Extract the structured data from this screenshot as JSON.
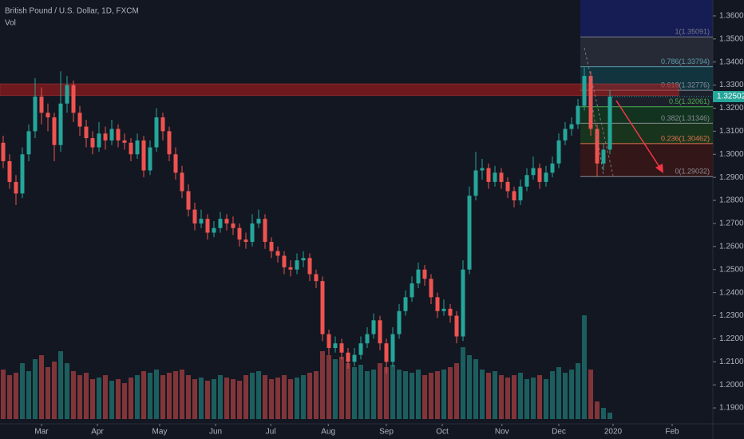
{
  "chart_data": {
    "type": "candlestick",
    "title": "British Pound / U.S. Dollar, 1D, FXCM",
    "volume_label": "Vol",
    "up_color": "#26a69a",
    "down_color": "#ef5350",
    "candles": [
      [
        1.305,
        1.308,
        1.294,
        1.297
      ],
      [
        1.297,
        1.3,
        1.285,
        1.288
      ],
      [
        1.288,
        1.291,
        1.278,
        1.283
      ],
      [
        1.283,
        1.303,
        1.281,
        1.3
      ],
      [
        1.3,
        1.313,
        1.297,
        1.31
      ],
      [
        1.31,
        1.333,
        1.307,
        1.325
      ],
      [
        1.325,
        1.329,
        1.313,
        1.318
      ],
      [
        1.318,
        1.322,
        1.31,
        1.316
      ],
      [
        1.316,
        1.318,
        1.297,
        1.304
      ],
      [
        1.304,
        1.336,
        1.301,
        1.322
      ],
      [
        1.322,
        1.334,
        1.318,
        1.33
      ],
      [
        1.33,
        1.332,
        1.314,
        1.318
      ],
      [
        1.318,
        1.321,
        1.308,
        1.312
      ],
      [
        1.312,
        1.315,
        1.303,
        1.307
      ],
      [
        1.307,
        1.31,
        1.3,
        1.303
      ],
      [
        1.303,
        1.314,
        1.301,
        1.309
      ],
      [
        1.309,
        1.312,
        1.302,
        1.306
      ],
      [
        1.306,
        1.315,
        1.304,
        1.311
      ],
      [
        1.311,
        1.313,
        1.303,
        1.306
      ],
      [
        1.306,
        1.309,
        1.302,
        1.305
      ],
      [
        1.305,
        1.307,
        1.297,
        1.3
      ],
      [
        1.3,
        1.309,
        1.298,
        1.306
      ],
      [
        1.306,
        1.308,
        1.29,
        1.293
      ],
      [
        1.293,
        1.306,
        1.291,
        1.303
      ],
      [
        1.303,
        1.32,
        1.301,
        1.316
      ],
      [
        1.316,
        1.318,
        1.306,
        1.31
      ],
      [
        1.31,
        1.312,
        1.297,
        1.3
      ],
      [
        1.3,
        1.303,
        1.289,
        1.292
      ],
      [
        1.292,
        1.295,
        1.281,
        1.284
      ],
      [
        1.284,
        1.287,
        1.273,
        1.276
      ],
      [
        1.276,
        1.279,
        1.267,
        1.27
      ],
      [
        1.27,
        1.276,
        1.268,
        1.272
      ],
      [
        1.272,
        1.274,
        1.263,
        1.266
      ],
      [
        1.266,
        1.271,
        1.264,
        1.268
      ],
      [
        1.268,
        1.275,
        1.266,
        1.272
      ],
      [
        1.272,
        1.274,
        1.267,
        1.27
      ],
      [
        1.27,
        1.273,
        1.265,
        1.268
      ],
      [
        1.268,
        1.27,
        1.26,
        1.263
      ],
      [
        1.263,
        1.266,
        1.259,
        1.262
      ],
      [
        1.262,
        1.274,
        1.26,
        1.27
      ],
      [
        1.27,
        1.276,
        1.268,
        1.272
      ],
      [
        1.272,
        1.274,
        1.259,
        1.262
      ],
      [
        1.262,
        1.264,
        1.255,
        1.258
      ],
      [
        1.258,
        1.26,
        1.253,
        1.256
      ],
      [
        1.256,
        1.258,
        1.248,
        1.251
      ],
      [
        1.251,
        1.254,
        1.247,
        1.25
      ],
      [
        1.25,
        1.257,
        1.248,
        1.254
      ],
      [
        1.254,
        1.258,
        1.251,
        1.255
      ],
      [
        1.255,
        1.257,
        1.245,
        1.248
      ],
      [
        1.248,
        1.25,
        1.242,
        1.245
      ],
      [
        1.245,
        1.247,
        1.219,
        1.222
      ],
      [
        1.222,
        1.224,
        1.213,
        1.216
      ],
      [
        1.216,
        1.221,
        1.214,
        1.218
      ],
      [
        1.218,
        1.22,
        1.211,
        1.214
      ],
      [
        1.214,
        1.216,
        1.207,
        1.21
      ],
      [
        1.21,
        1.216,
        1.208,
        1.213
      ],
      [
        1.213,
        1.221,
        1.211,
        1.218
      ],
      [
        1.218,
        1.225,
        1.216,
        1.222
      ],
      [
        1.222,
        1.231,
        1.22,
        1.228
      ],
      [
        1.228,
        1.23,
        1.215,
        1.218
      ],
      [
        1.218,
        1.22,
        1.205,
        1.21
      ],
      [
        1.21,
        1.225,
        1.208,
        1.222
      ],
      [
        1.222,
        1.235,
        1.22,
        1.232
      ],
      [
        1.232,
        1.241,
        1.23,
        1.238
      ],
      [
        1.238,
        1.247,
        1.236,
        1.244
      ],
      [
        1.244,
        1.253,
        1.242,
        1.25
      ],
      [
        1.25,
        1.252,
        1.243,
        1.246
      ],
      [
        1.246,
        1.248,
        1.235,
        1.238
      ],
      [
        1.238,
        1.24,
        1.229,
        1.232
      ],
      [
        1.232,
        1.237,
        1.23,
        1.233
      ],
      [
        1.233,
        1.235,
        1.227,
        1.23
      ],
      [
        1.23,
        1.232,
        1.218,
        1.221
      ],
      [
        1.221,
        1.254,
        1.219,
        1.25
      ],
      [
        1.25,
        1.286,
        1.248,
        1.282
      ],
      [
        1.282,
        1.301,
        1.28,
        1.293
      ],
      [
        1.293,
        1.298,
        1.289,
        1.294
      ],
      [
        1.294,
        1.296,
        1.285,
        1.288
      ],
      [
        1.288,
        1.295,
        1.286,
        1.292
      ],
      [
        1.292,
        1.294,
        1.285,
        1.288
      ],
      [
        1.288,
        1.29,
        1.281,
        1.284
      ],
      [
        1.284,
        1.286,
        1.277,
        1.28
      ],
      [
        1.28,
        1.289,
        1.278,
        1.286
      ],
      [
        1.286,
        1.294,
        1.284,
        1.291
      ],
      [
        1.291,
        1.299,
        1.289,
        1.294
      ],
      [
        1.294,
        1.296,
        1.285,
        1.288
      ],
      [
        1.288,
        1.295,
        1.286,
        1.292
      ],
      [
        1.292,
        1.299,
        1.29,
        1.296
      ],
      [
        1.296,
        1.309,
        1.294,
        1.306
      ],
      [
        1.306,
        1.314,
        1.304,
        1.311
      ],
      [
        1.311,
        1.316,
        1.308,
        1.313
      ],
      [
        1.313,
        1.324,
        1.311,
        1.321
      ],
      [
        1.321,
        1.3376,
        1.319,
        1.334
      ],
      [
        1.334,
        1.336,
        1.308,
        1.311
      ],
      [
        1.311,
        1.313,
        1.2903,
        1.296
      ],
      [
        1.296,
        1.305,
        1.293,
        1.302
      ],
      [
        1.302,
        1.3277,
        1.3,
        1.325
      ]
    ],
    "volume": [
      62,
      55,
      58,
      70,
      60,
      75,
      80,
      65,
      72,
      85,
      70,
      60,
      55,
      58,
      50,
      52,
      55,
      48,
      50,
      45,
      52,
      55,
      60,
      58,
      62,
      55,
      58,
      60,
      62,
      55,
      50,
      52,
      48,
      50,
      55,
      52,
      50,
      48,
      55,
      58,
      60,
      55,
      50,
      52,
      55,
      50,
      52,
      55,
      58,
      60,
      85,
      80,
      75,
      78,
      70,
      65,
      68,
      60,
      62,
      70,
      65,
      68,
      62,
      60,
      58,
      62,
      55,
      58,
      60,
      62,
      65,
      70,
      90,
      80,
      75,
      62,
      58,
      60,
      55,
      52,
      55,
      58,
      50,
      52,
      55,
      50,
      60,
      65,
      58,
      62,
      70,
      130,
      62,
      22,
      14,
      8
    ],
    "xlim": [
      -0.5,
      111.125
    ],
    "xticks": [
      {
        "value": 6,
        "label": "Mar"
      },
      {
        "value": 14.75,
        "label": "Apr"
      },
      {
        "value": 24.5,
        "label": "May"
      },
      {
        "value": 33.25,
        "label": "Jun"
      },
      {
        "value": 41.9,
        "label": "Jul"
      },
      {
        "value": 50.9,
        "label": "Aug"
      },
      {
        "value": 60,
        "label": "Sep"
      },
      {
        "value": 68.75,
        "label": "Oct"
      },
      {
        "value": 78.1,
        "label": "Nov"
      },
      {
        "value": 87,
        "label": "Dec"
      },
      {
        "value": 95.5,
        "label": "2020"
      },
      {
        "value": 104.75,
        "label": "Feb"
      }
    ],
    "ylim": [
      1.1831,
      1.3669
    ],
    "yticks": [
      {
        "value": 1.19,
        "label": "1.19000"
      },
      {
        "value": 1.2,
        "label": "1.20000"
      },
      {
        "value": 1.21,
        "label": "1.21000"
      },
      {
        "value": 1.22,
        "label": "1.22000"
      },
      {
        "value": 1.23,
        "label": "1.23000"
      },
      {
        "value": 1.24,
        "label": "1.24000"
      },
      {
        "value": 1.25,
        "label": "1.25000"
      },
      {
        "value": 1.26,
        "label": "1.26000"
      },
      {
        "value": 1.27,
        "label": "1.27000"
      },
      {
        "value": 1.28,
        "label": "1.28000"
      },
      {
        "value": 1.29,
        "label": "1.29000"
      },
      {
        "value": 1.3,
        "label": "1.30000"
      },
      {
        "value": 1.31,
        "label": "1.31000"
      },
      {
        "value": 1.32,
        "label": "1.32000"
      },
      {
        "value": 1.33,
        "label": "1.33000"
      },
      {
        "value": 1.34,
        "label": "1.34000"
      },
      {
        "value": 1.35,
        "label": "1.35000"
      },
      {
        "value": 1.36,
        "label": "1.36000"
      }
    ],
    "last_price": 1.32502,
    "resistance_zone": [
      1.3255,
      1.3305
    ],
    "fib_levels": [
      {
        "value": 1.35091,
        "label": "1(1.35091)",
        "color": "#787b86"
      },
      {
        "value": 1.33794,
        "label": "0.786(1.33794)",
        "color": "#5b9cab"
      },
      {
        "value": 1.32776,
        "label": "0.618(1.32776)",
        "color": "#8a8d96"
      },
      {
        "value": 1.32061,
        "label": "0.5(1.32061)",
        "color": "#4caf50"
      },
      {
        "value": 1.31346,
        "label": "0.382(1.31346)",
        "color": "#8a8d96"
      },
      {
        "value": 1.30462,
        "label": "0.236(1.30462)",
        "color": "#e0734f"
      },
      {
        "value": 1.29032,
        "label": "0(1.29032)",
        "color": "#8a8d96"
      }
    ]
  }
}
